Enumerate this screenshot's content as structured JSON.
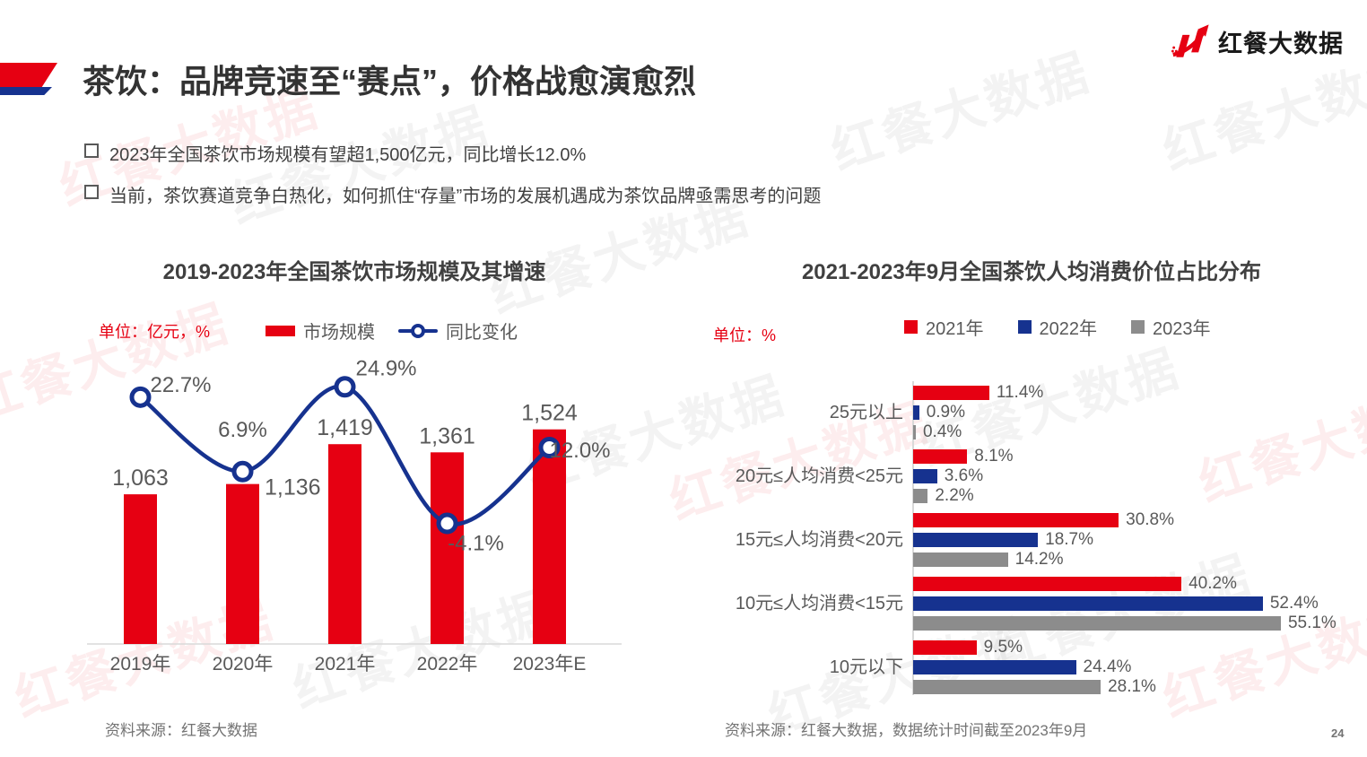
{
  "page": {
    "number": "24"
  },
  "logo": {
    "text": "红餐大数据"
  },
  "watermark": {
    "text": "红餐大数据"
  },
  "header": {
    "title": "茶饮：品牌竞速至“赛点”，价格战愈演愈烈",
    "bullets": [
      "2023年全国茶饮市场规模有望超1,500亿元，同比增长12.0%",
      "当前，茶饮赛道竞争白热化，如何抓住“存量”市场的发展机遇成为茶饮品牌亟需思考的问题"
    ]
  },
  "colors": {
    "brand_red": "#E60012",
    "brand_blue": "#16328F",
    "series_gray": "#8C8C8C",
    "axis_gray": "#D9D9D9",
    "label_gray": "#595959"
  },
  "chart_data": [
    {
      "type": "bar",
      "subtype": "bar+line-combo",
      "title": "2019-2023年全国茶饮市场规模及其增速",
      "unit_label": "单位：亿元，%",
      "categories": [
        "2019年",
        "2020年",
        "2021年",
        "2022年",
        "2023年E"
      ],
      "series": [
        {
          "name": "市场规模",
          "type": "bar",
          "values": [
            1063,
            1136,
            1419,
            1361,
            1524
          ],
          "labels": [
            "1,063",
            "1,136",
            "1,419",
            "1,361",
            "1,524"
          ],
          "color": "#E60012"
        },
        {
          "name": "同比变化",
          "type": "line",
          "values": [
            22.7,
            6.9,
            24.9,
            -4.1,
            12.0
          ],
          "labels": [
            "22.7%",
            "6.9%",
            "24.9%",
            "-4.1%",
            "12.0%"
          ],
          "color": "#16328F"
        }
      ],
      "ylabel": "亿元",
      "y2label": "%",
      "grid": "off",
      "legend_position": "top",
      "source": "资料来源：红餐大数据"
    },
    {
      "type": "bar",
      "subtype": "horizontal-grouped",
      "title": "2021-2023年9月全国茶饮人均消费价位占比分布",
      "unit_label": "单位：%",
      "categories": [
        "25元以上",
        "20元≤人均消费<25元",
        "15元≤人均消费<20元",
        "10元≤人均消费<15元",
        "10元以下"
      ],
      "series": [
        {
          "name": "2021年",
          "values": [
            11.4,
            8.1,
            30.8,
            40.2,
            9.5
          ],
          "labels": [
            "11.4%",
            "8.1%",
            "30.8%",
            "40.2%",
            "9.5%"
          ],
          "color": "#E60012"
        },
        {
          "name": "2022年",
          "values": [
            0.9,
            3.6,
            18.7,
            52.4,
            24.4
          ],
          "labels": [
            "0.9%",
            "3.6%",
            "18.7%",
            "52.4%",
            "24.4%"
          ],
          "color": "#16328F"
        },
        {
          "name": "2023年",
          "values": [
            0.4,
            2.2,
            14.2,
            55.1,
            28.1
          ],
          "labels": [
            "0.4%",
            "2.2%",
            "14.2%",
            "55.1%",
            "28.1%"
          ],
          "color": "#8C8C8C"
        }
      ],
      "xlim": [
        0,
        60
      ],
      "grid": "off",
      "legend_position": "top",
      "source": "资料来源：红餐大数据，数据统计时间截至2023年9月"
    }
  ]
}
